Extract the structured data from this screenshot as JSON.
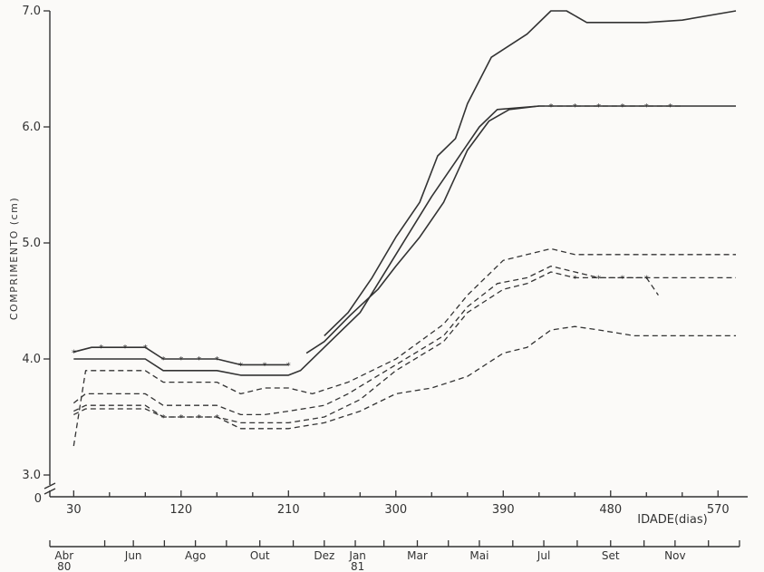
{
  "chart_data": {
    "type": "line",
    "ylabel": "COMPRIMENTO (cm)",
    "xlabel": "IDADE(dias)",
    "ylim": [
      3.0,
      7.0
    ],
    "xlim": [
      10,
      585
    ],
    "y_ticks": [
      {
        "value": 3.0,
        "label": "3.0"
      },
      {
        "value": 4.0,
        "label": "4.0"
      },
      {
        "value": 5.0,
        "label": "5.0"
      },
      {
        "value": 6.0,
        "label": "6.0"
      },
      {
        "value": 7.0,
        "label": "7.0"
      }
    ],
    "y_origin_label": "0",
    "x_ticks": [
      {
        "value": 30,
        "label": "30"
      },
      {
        "value": 120,
        "label": "120"
      },
      {
        "value": 210,
        "label": "210"
      },
      {
        "value": 300,
        "label": "300"
      },
      {
        "value": 390,
        "label": "390"
      },
      {
        "value": 480,
        "label": "480"
      },
      {
        "value": 570,
        "label": "570"
      }
    ],
    "x_minor_ticks": [
      60,
      90,
      150,
      180,
      240,
      270,
      330,
      360,
      420,
      450,
      510,
      540
    ],
    "month_axis": {
      "ticks": [
        10,
        56,
        80,
        106,
        132,
        158,
        186,
        214,
        240,
        266,
        290,
        318,
        344,
        370,
        398,
        424,
        452,
        480,
        508,
        534,
        562,
        588
      ],
      "labels": [
        {
          "x": 22,
          "text": "Abr",
          "sub": "80"
        },
        {
          "x": 80,
          "text": "Jun",
          "sub": ""
        },
        {
          "x": 132,
          "text": "Ago",
          "sub": ""
        },
        {
          "x": 186,
          "text": "Out",
          "sub": ""
        },
        {
          "x": 240,
          "text": "Dez",
          "sub": ""
        },
        {
          "x": 268,
          "text": "Jan",
          "sub": "81"
        },
        {
          "x": 318,
          "text": "Mar",
          "sub": ""
        },
        {
          "x": 370,
          "text": "Mai",
          "sub": ""
        },
        {
          "x": 424,
          "text": "Jul",
          "sub": ""
        },
        {
          "x": 480,
          "text": "Set",
          "sub": ""
        },
        {
          "x": 534,
          "text": "Nov",
          "sub": ""
        }
      ]
    },
    "series": [
      {
        "style": "solid",
        "marker": "",
        "points": [
          [
            30,
            4.0
          ],
          [
            90,
            4.0
          ],
          [
            105,
            3.9
          ],
          [
            150,
            3.9
          ],
          [
            170,
            3.86
          ],
          [
            210,
            3.86
          ],
          [
            220,
            3.9
          ],
          [
            240,
            4.1
          ],
          [
            270,
            4.4
          ],
          [
            300,
            4.9
          ],
          [
            330,
            5.4
          ],
          [
            350,
            5.7
          ],
          [
            370,
            6.0
          ],
          [
            385,
            6.15
          ],
          [
            420,
            6.18
          ],
          [
            585,
            6.18
          ]
        ]
      },
      {
        "style": "solid",
        "marker": "",
        "points": [
          [
            225,
            4.05
          ],
          [
            240,
            4.15
          ],
          [
            262,
            4.38
          ],
          [
            285,
            4.6
          ],
          [
            300,
            4.8
          ],
          [
            320,
            5.05
          ],
          [
            340,
            5.35
          ],
          [
            360,
            5.8
          ],
          [
            378,
            6.05
          ],
          [
            395,
            6.15
          ],
          [
            420,
            6.18
          ]
        ]
      },
      {
        "style": "solid",
        "marker": "",
        "points": [
          [
            240,
            4.2
          ],
          [
            260,
            4.4
          ],
          [
            280,
            4.7
          ],
          [
            300,
            5.05
          ],
          [
            320,
            5.35
          ],
          [
            335,
            5.75
          ],
          [
            350,
            5.9
          ],
          [
            360,
            6.2
          ],
          [
            380,
            6.6
          ],
          [
            410,
            6.8
          ],
          [
            430,
            7.0
          ],
          [
            443,
            7.0
          ],
          [
            460,
            6.9
          ],
          [
            510,
            6.9
          ],
          [
            540,
            6.92
          ],
          [
            585,
            7.0
          ]
        ]
      },
      {
        "style": "solid",
        "marker": "*",
        "marker_x": [
          30,
          53,
          73,
          90,
          105,
          120,
          135,
          150,
          170,
          190,
          210
        ],
        "points": [
          [
            30,
            4.06
          ],
          [
            45,
            4.1
          ],
          [
            90,
            4.1
          ],
          [
            105,
            4.0
          ],
          [
            150,
            4.0
          ],
          [
            170,
            3.95
          ],
          [
            210,
            3.95
          ]
        ]
      },
      {
        "style": "dashed",
        "marker": "*",
        "marker_x": [
          430,
          450,
          470,
          490,
          510,
          530
        ],
        "points": [
          [
            420,
            6.18
          ],
          [
            540,
            6.18
          ]
        ]
      },
      {
        "style": "dashed",
        "marker": "",
        "points": [
          [
            30,
            3.25
          ],
          [
            40,
            3.9
          ],
          [
            90,
            3.9
          ],
          [
            105,
            3.8
          ],
          [
            150,
            3.8
          ],
          [
            170,
            3.7
          ],
          [
            190,
            3.75
          ],
          [
            210,
            3.75
          ],
          [
            230,
            3.7
          ],
          [
            260,
            3.8
          ],
          [
            300,
            4.0
          ],
          [
            340,
            4.3
          ],
          [
            360,
            4.55
          ],
          [
            390,
            4.85
          ],
          [
            410,
            4.9
          ],
          [
            430,
            4.95
          ],
          [
            450,
            4.9
          ],
          [
            585,
            4.9
          ]
        ]
      },
      {
        "style": "dashed",
        "marker": "",
        "points": [
          [
            30,
            3.62
          ],
          [
            40,
            3.7
          ],
          [
            90,
            3.7
          ],
          [
            105,
            3.6
          ],
          [
            150,
            3.6
          ],
          [
            170,
            3.52
          ],
          [
            190,
            3.52
          ],
          [
            210,
            3.55
          ],
          [
            240,
            3.6
          ],
          [
            260,
            3.7
          ],
          [
            300,
            3.95
          ],
          [
            340,
            4.2
          ],
          [
            360,
            4.45
          ],
          [
            385,
            4.65
          ],
          [
            410,
            4.7
          ],
          [
            430,
            4.8
          ],
          [
            450,
            4.75
          ],
          [
            470,
            4.7
          ],
          [
            585,
            4.7
          ]
        ]
      },
      {
        "style": "dashed",
        "marker": "*",
        "marker_x": [
          105,
          120,
          135,
          150,
          450,
          470,
          490,
          510
        ],
        "points": [
          [
            30,
            3.55
          ],
          [
            40,
            3.6
          ],
          [
            90,
            3.6
          ],
          [
            105,
            3.5
          ],
          [
            150,
            3.5
          ],
          [
            170,
            3.45
          ],
          [
            210,
            3.45
          ],
          [
            240,
            3.5
          ],
          [
            270,
            3.65
          ],
          [
            300,
            3.9
          ],
          [
            340,
            4.15
          ],
          [
            360,
            4.4
          ],
          [
            390,
            4.6
          ],
          [
            410,
            4.65
          ],
          [
            430,
            4.75
          ],
          [
            450,
            4.7
          ],
          [
            510,
            4.7
          ],
          [
            520,
            4.55
          ]
        ]
      },
      {
        "style": "dashed",
        "marker": "",
        "points": [
          [
            30,
            3.52
          ],
          [
            40,
            3.57
          ],
          [
            90,
            3.57
          ],
          [
            105,
            3.5
          ],
          [
            150,
            3.5
          ],
          [
            170,
            3.4
          ],
          [
            210,
            3.4
          ],
          [
            240,
            3.45
          ],
          [
            270,
            3.55
          ],
          [
            300,
            3.7
          ],
          [
            330,
            3.75
          ],
          [
            360,
            3.85
          ],
          [
            390,
            4.05
          ],
          [
            410,
            4.1
          ],
          [
            430,
            4.25
          ],
          [
            450,
            4.28
          ],
          [
            470,
            4.25
          ],
          [
            500,
            4.2
          ],
          [
            585,
            4.2
          ]
        ]
      }
    ]
  }
}
